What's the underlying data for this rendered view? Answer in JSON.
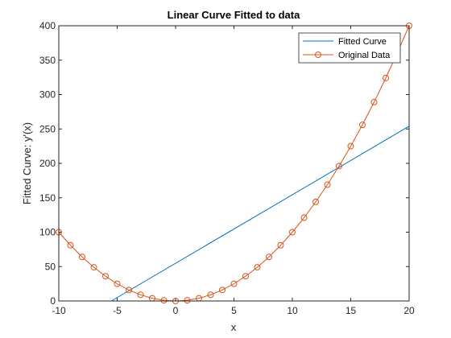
{
  "chart_data": {
    "type": "line",
    "title": "Linear Curve Fitted to data",
    "xlabel": "x",
    "ylabel": "Fitted Curve:  y'(x)",
    "xlim": [
      -10,
      20
    ],
    "ylim": [
      0,
      400
    ],
    "xticks": [
      -10,
      -5,
      0,
      5,
      10,
      15,
      20
    ],
    "yticks": [
      0,
      50,
      100,
      150,
      200,
      250,
      300,
      350,
      400
    ],
    "grid": false,
    "legend_position": "top-right",
    "series": [
      {
        "name": "Fitted Curve",
        "color": "#0072BD",
        "marker": "none",
        "x": [
          -5.5,
          20
        ],
        "y": [
          0,
          254
        ]
      },
      {
        "name": "Original Data",
        "color": "#D95319",
        "marker": "circle",
        "x": [
          -10,
          -9,
          -8,
          -7,
          -6,
          -5,
          -4,
          -3,
          -2,
          -1,
          0,
          1,
          2,
          3,
          4,
          5,
          6,
          7,
          8,
          9,
          10,
          11,
          12,
          13,
          14,
          15,
          16,
          17,
          18,
          19,
          20
        ],
        "y": [
          100,
          81,
          64,
          49,
          36,
          25,
          16,
          9,
          4,
          1,
          0,
          1,
          4,
          9,
          16,
          25,
          36,
          49,
          64,
          81,
          100,
          121,
          144,
          169,
          196,
          225,
          256,
          289,
          324,
          361,
          400
        ]
      }
    ]
  }
}
